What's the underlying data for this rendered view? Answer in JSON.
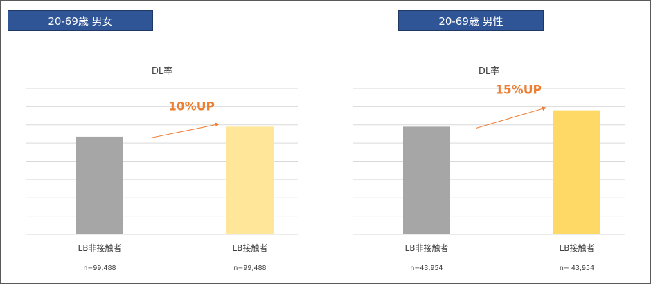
{
  "colors": {
    "header_bg": "#2f5597",
    "gray_bar": "#a6a6a6",
    "yellow_light": "#ffe699",
    "yellow_strong": "#ffd966",
    "annotation": "#ed7d31",
    "gridline": "#d9d9d9"
  },
  "panels": [
    {
      "header": "20-69歳 男女"
    },
    {
      "header": "20-69歳 男性"
    }
  ],
  "chart_data": [
    {
      "type": "bar",
      "title": "DL率",
      "categories": [
        "LB非接触者",
        "LB接触者"
      ],
      "values": [
        5.35,
        5.9
      ],
      "ylim": [
        0,
        8
      ],
      "grid": true,
      "counts": [
        "n=99,488",
        "n=99,488"
      ],
      "annotation": "10%UP",
      "bar_colors": [
        "#a6a6a6",
        "#ffe699"
      ]
    },
    {
      "type": "bar",
      "title": "DL率",
      "categories": [
        "LB非接触者",
        "LB接触者"
      ],
      "values": [
        5.9,
        6.8
      ],
      "ylim": [
        0,
        8
      ],
      "grid": true,
      "counts": [
        "n=43,954",
        "n= 43,954"
      ],
      "annotation": "15%UP",
      "bar_colors": [
        "#a6a6a6",
        "#ffd966"
      ]
    }
  ]
}
